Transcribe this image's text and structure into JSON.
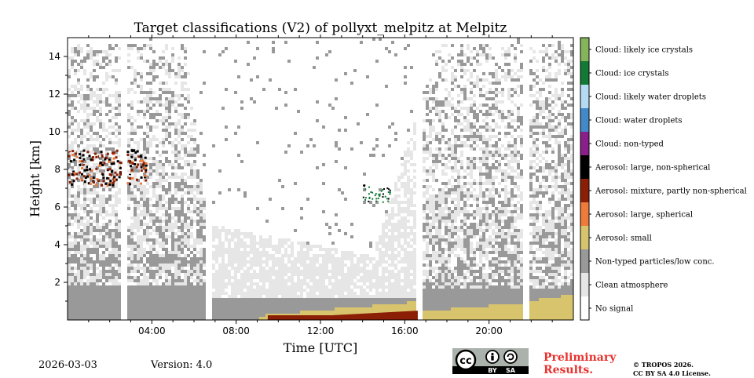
{
  "chart_data": {
    "type": "heatmap",
    "title": "Target classifications (V2) of pollyxt_melpitz at Melpitz",
    "xlabel": "Time [UTC]",
    "ylabel": "Height [km]",
    "xlim_hours": [
      0,
      24
    ],
    "ylim_km": [
      0,
      15
    ],
    "x_ticks": [
      {
        "hour": 4,
        "label": "04:00"
      },
      {
        "hour": 8,
        "label": "08:00"
      },
      {
        "hour": 12,
        "label": "12:00"
      },
      {
        "hour": 16,
        "label": "16:00"
      },
      {
        "hour": 20,
        "label": "20:00"
      }
    ],
    "y_ticks": [
      {
        "km": 2,
        "label": "2"
      },
      {
        "km": 4,
        "label": "4"
      },
      {
        "km": 6,
        "label": "6"
      },
      {
        "km": 8,
        "label": "8"
      },
      {
        "km": 10,
        "label": "10"
      },
      {
        "km": 12,
        "label": "12"
      },
      {
        "km": 14,
        "label": "14"
      }
    ],
    "data_gaps_hours": [
      [
        2.5,
        2.8
      ],
      [
        6.5,
        6.8
      ],
      [
        16.5,
        16.8
      ],
      [
        21.5,
        21.8
      ]
    ],
    "legend": [
      {
        "label": "Cloud: likely ice crystals",
        "color": "#86b45a"
      },
      {
        "label": "Cloud: ice crystals",
        "color": "#127a35"
      },
      {
        "label": "Cloud: likely water droplets",
        "color": "#b5daf4"
      },
      {
        "label": "Cloud: water droplets",
        "color": "#4289c9"
      },
      {
        "label": "Cloud: non-typed",
        "color": "#8a1f8c"
      },
      {
        "label": "Aerosol: large, non-spherical",
        "color": "#000000"
      },
      {
        "label": "Aerosol: mixture, partly non-spherical",
        "color": "#8b1f06"
      },
      {
        "label": "Aerosol: large, spherical",
        "color": "#f07a3a"
      },
      {
        "label": "Aerosol: small",
        "color": "#d8c46c"
      },
      {
        "label": "Non-typed particles/low conc.",
        "color": "#999999"
      },
      {
        "label": "Clean atmosphere",
        "color": "#e6e6e6"
      },
      {
        "label": "No signal",
        "color": "#ffffff"
      }
    ]
  },
  "footer": {
    "date": "2026-03-03",
    "version": "Version: 4.0",
    "preliminary_line1": "Preliminary",
    "preliminary_line2": "Results.",
    "copyright_line1": "© TROPOS 2026.",
    "copyright_line2": "CC BY SA 4.0 License.",
    "cc_badge": {
      "text_cc": "cc",
      "text_by": "BY",
      "text_sa": "SA"
    }
  }
}
